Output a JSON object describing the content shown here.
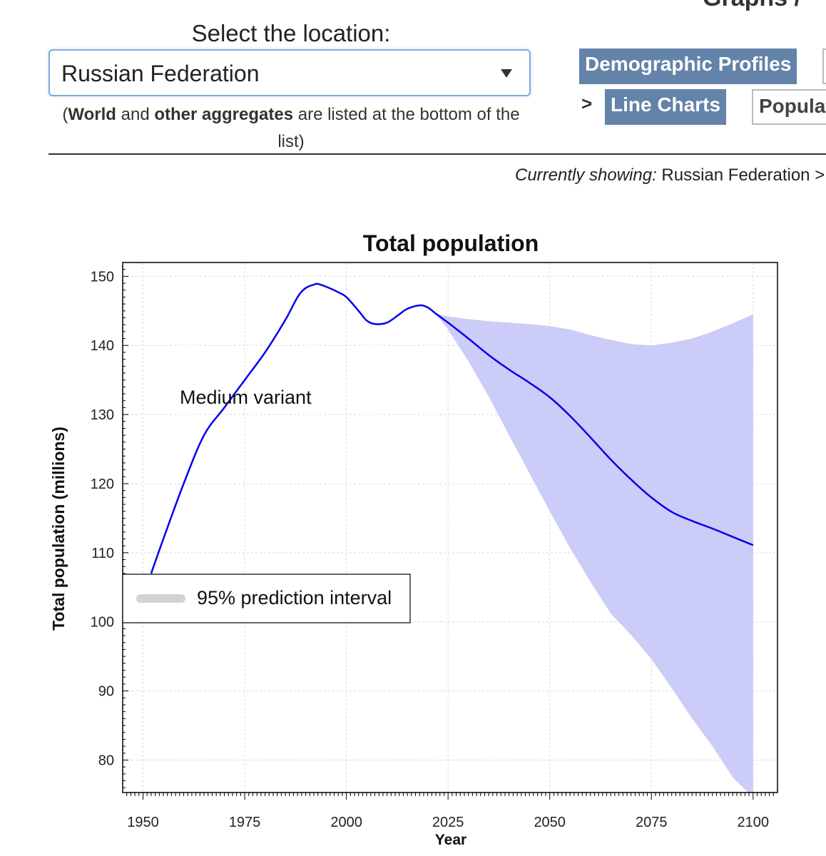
{
  "header": {
    "clipped_title": "Graphs /",
    "location_label": "Select the location:",
    "location_value": "Russian Federation",
    "note_world": "World",
    "note_and": " and ",
    "note_other": "other aggregates",
    "note_rest": " are listed at the bottom of the list)",
    "note_open": "("
  },
  "nav": {
    "demographic_profiles": "Demographic Profiles",
    "separator": ">",
    "line_charts": "Line Charts",
    "population": "Population"
  },
  "status": {
    "currently_label": "Currently showing:",
    "currently_value": " Russian Federation >"
  },
  "colors": {
    "line": "#0000ee",
    "band": "#ccccf8",
    "legend_swatch": "#d3d3d3",
    "nav_button": "#6383a8"
  },
  "chart_data": {
    "type": "line",
    "title": "Total population",
    "xlabel": "Year",
    "ylabel": "Total population (millions)",
    "xlim": [
      1945,
      2106
    ],
    "ylim": [
      75.3,
      152
    ],
    "x_ticks": [
      1950,
      1975,
      2000,
      2025,
      2050,
      2075,
      2100
    ],
    "y_ticks": [
      80,
      90,
      100,
      110,
      120,
      130,
      140,
      150
    ],
    "grid": true,
    "annotation": "Medium variant",
    "legend": {
      "label": "95% prediction interval",
      "position": "lower-left"
    },
    "series": [
      {
        "name": "Medium variant",
        "x": [
          1952,
          1955,
          1960,
          1965,
          1970,
          1975,
          1980,
          1985,
          1988,
          1990,
          1992,
          1993,
          1995,
          1998,
          2000,
          2003,
          2005,
          2007,
          2010,
          2013,
          2015,
          2018,
          2020,
          2022,
          2025,
          2030,
          2035,
          2040,
          2045,
          2050,
          2055,
          2060,
          2065,
          2070,
          2075,
          2080,
          2085,
          2090,
          2095,
          2100
        ],
        "y": [
          107,
          112,
          120,
          127,
          131,
          135,
          139,
          143.7,
          147,
          148.3,
          148.8,
          148.9,
          148.5,
          147.7,
          147,
          145,
          143.6,
          143.1,
          143.3,
          144.5,
          145.3,
          145.8,
          145.5,
          144.6,
          143.3,
          141,
          138.6,
          136.5,
          134.6,
          132.5,
          129.8,
          126.7,
          123.5,
          120.6,
          118,
          115.9,
          114.6,
          113.5,
          112.3,
          111.1
        ]
      },
      {
        "name": "95% prediction interval",
        "x": [
          2022,
          2025,
          2030,
          2035,
          2040,
          2045,
          2050,
          2055,
          2060,
          2065,
          2070,
          2075,
          2080,
          2085,
          2090,
          2095,
          2100
        ],
        "lower": [
          144.6,
          142.3,
          137.7,
          132.6,
          127,
          121.5,
          116,
          110.7,
          105.8,
          101.2,
          98.1,
          94.6,
          90.4,
          86,
          82,
          77.5,
          74.6
        ],
        "upper": [
          144.6,
          144.2,
          143.8,
          143.5,
          143.3,
          143.1,
          142.8,
          142.3,
          141.5,
          140.8,
          140.2,
          140,
          140.4,
          141,
          142,
          143.2,
          144.5
        ]
      }
    ]
  }
}
